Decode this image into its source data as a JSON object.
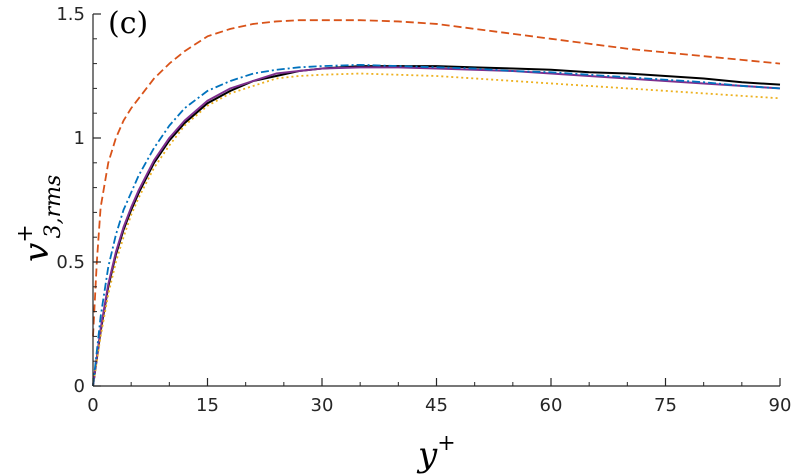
{
  "chart_data": {
    "type": "line",
    "panel_label": "(c)",
    "xlabel": "y",
    "xlabel_sup": "+",
    "ylabel": "v",
    "ylabel_sup": "+",
    "ylabel_sub": "3,rms",
    "xlim": [
      0,
      90
    ],
    "ylim": [
      0,
      1.5
    ],
    "xticks": [
      0,
      15,
      30,
      45,
      60,
      75,
      90
    ],
    "yticks": [
      0,
      0.5,
      1,
      1.5
    ],
    "ytick_labels": [
      "0",
      "0.5",
      "1",
      "1.5"
    ],
    "grid": false,
    "series": [
      {
        "color": "#000000",
        "style": "solid",
        "x": [
          0,
          1,
          2,
          3,
          4,
          5,
          6,
          8,
          10,
          12,
          15,
          18,
          21,
          24,
          27,
          30,
          35,
          40,
          45,
          50,
          55,
          60,
          65,
          70,
          75,
          80,
          85,
          90
        ],
        "y": [
          0,
          0.22,
          0.4,
          0.53,
          0.63,
          0.71,
          0.78,
          0.9,
          0.99,
          1.06,
          1.14,
          1.19,
          1.23,
          1.25,
          1.27,
          1.28,
          1.29,
          1.29,
          1.29,
          1.285,
          1.28,
          1.275,
          1.265,
          1.26,
          1.25,
          1.24,
          1.225,
          1.215
        ]
      },
      {
        "color": "#7e2f8e",
        "style": "solid",
        "x": [
          0,
          1,
          2,
          3,
          4,
          5,
          6,
          8,
          10,
          12,
          15,
          18,
          21,
          24,
          27,
          30,
          35,
          40,
          45,
          50,
          55,
          60,
          65,
          70,
          75,
          80,
          85,
          90
        ],
        "y": [
          0,
          0.23,
          0.41,
          0.54,
          0.64,
          0.72,
          0.79,
          0.91,
          1.0,
          1.07,
          1.15,
          1.2,
          1.23,
          1.26,
          1.27,
          1.28,
          1.285,
          1.285,
          1.28,
          1.275,
          1.27,
          1.26,
          1.25,
          1.24,
          1.23,
          1.22,
          1.21,
          1.2
        ]
      },
      {
        "color": "#edb120",
        "style": "dotted",
        "x": [
          0,
          1,
          2,
          3,
          4,
          5,
          6,
          8,
          10,
          12,
          15,
          18,
          21,
          24,
          27,
          30,
          35,
          40,
          45,
          50,
          55,
          60,
          65,
          70,
          75,
          80,
          85,
          90
        ],
        "y": [
          0,
          0.2,
          0.37,
          0.5,
          0.6,
          0.69,
          0.76,
          0.88,
          0.97,
          1.05,
          1.13,
          1.18,
          1.21,
          1.24,
          1.25,
          1.255,
          1.26,
          1.255,
          1.25,
          1.24,
          1.23,
          1.22,
          1.21,
          1.2,
          1.19,
          1.18,
          1.17,
          1.16
        ]
      },
      {
        "color": "#0072bd",
        "style": "dashdot",
        "x": [
          0,
          1,
          2,
          3,
          4,
          5,
          6,
          8,
          10,
          12,
          15,
          18,
          21,
          24,
          27,
          30,
          35,
          40,
          45,
          50,
          55,
          60,
          65,
          70,
          75,
          80,
          85,
          90
        ],
        "y": [
          0,
          0.28,
          0.48,
          0.61,
          0.71,
          0.78,
          0.85,
          0.96,
          1.05,
          1.12,
          1.19,
          1.23,
          1.26,
          1.275,
          1.285,
          1.29,
          1.295,
          1.29,
          1.285,
          1.28,
          1.27,
          1.265,
          1.255,
          1.245,
          1.235,
          1.225,
          1.21,
          1.2
        ]
      },
      {
        "color": "#d95319",
        "style": "dashed",
        "x": [
          0,
          0.5,
          1,
          2,
          3,
          4,
          5,
          6,
          8,
          10,
          12,
          15,
          18,
          21,
          24,
          27,
          30,
          35,
          40,
          45,
          50,
          55,
          60,
          65,
          70,
          75,
          80,
          85,
          90
        ],
        "y": [
          0.2,
          0.5,
          0.72,
          0.9,
          1.0,
          1.07,
          1.12,
          1.16,
          1.24,
          1.3,
          1.35,
          1.41,
          1.44,
          1.46,
          1.47,
          1.475,
          1.475,
          1.475,
          1.47,
          1.46,
          1.44,
          1.42,
          1.4,
          1.38,
          1.36,
          1.345,
          1.33,
          1.315,
          1.3
        ]
      }
    ]
  }
}
